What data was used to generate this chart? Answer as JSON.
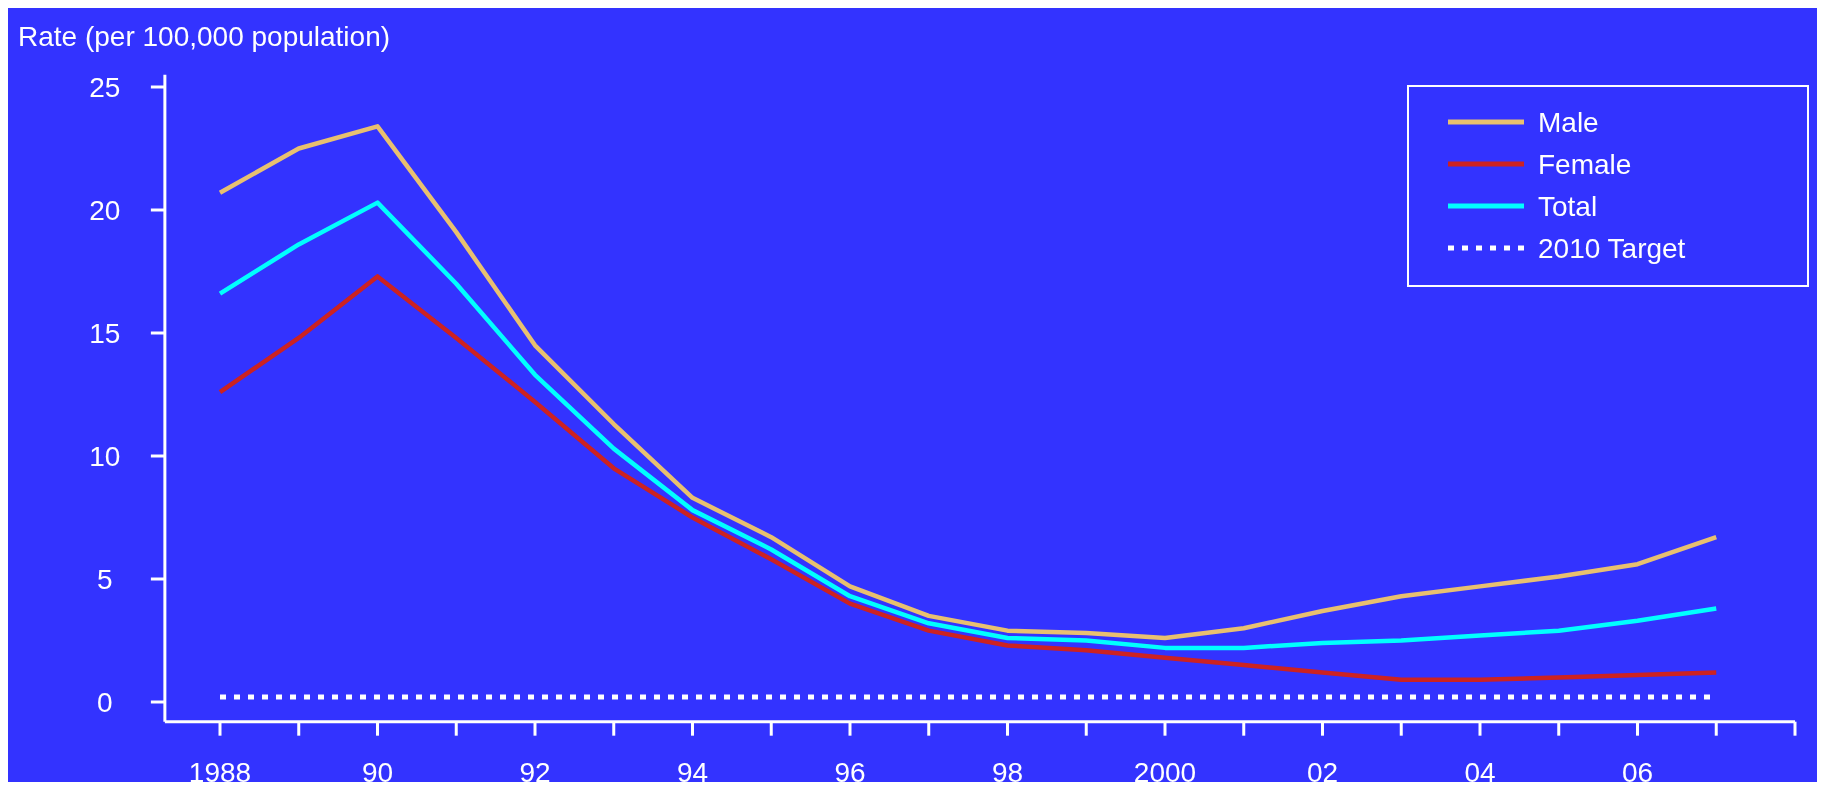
{
  "chart_data": {
    "type": "line",
    "ylabel": "Rate (per 100,000 population)",
    "x": [
      1988,
      1989,
      1990,
      1991,
      1992,
      1993,
      1994,
      1995,
      1996,
      1997,
      1998,
      1999,
      2000,
      2001,
      2002,
      2003,
      2004,
      2005,
      2006,
      2007
    ],
    "xlim": [
      1987.3,
      2008
    ],
    "ylim": [
      -0.8,
      25.5
    ],
    "xticks": [
      1988,
      {
        "value": 1989,
        "label": null
      },
      {
        "value": 1990,
        "label": "90"
      },
      {
        "value": 1991,
        "label": null
      },
      {
        "value": 1992,
        "label": "92"
      },
      {
        "value": 1993,
        "label": null
      },
      {
        "value": 1994,
        "label": "94"
      },
      {
        "value": 1995,
        "label": null
      },
      {
        "value": 1996,
        "label": "96"
      },
      {
        "value": 1997,
        "label": null
      },
      {
        "value": 1998,
        "label": "98"
      },
      {
        "value": 1999,
        "label": null
      },
      2000,
      {
        "value": 2001,
        "label": null
      },
      {
        "value": 2002,
        "label": "02"
      },
      {
        "value": 2003,
        "label": null
      },
      {
        "value": 2004,
        "label": "04"
      },
      {
        "value": 2005,
        "label": null
      },
      {
        "value": 2006,
        "label": "06"
      },
      {
        "value": 2007,
        "label": null
      },
      {
        "value": 2008,
        "label": null
      }
    ],
    "yticks": [
      0,
      5,
      10,
      15,
      20,
      25
    ],
    "series": [
      {
        "name": "Male",
        "color": "#e8c070",
        "values": [
          20.7,
          22.5,
          23.4,
          19.1,
          14.5,
          11.3,
          8.3,
          6.7,
          4.7,
          3.5,
          2.9,
          2.8,
          2.6,
          3.0,
          3.7,
          4.3,
          4.7,
          5.1,
          5.6,
          6.7
        ]
      },
      {
        "name": "Female",
        "color": "#cc2222",
        "values": [
          12.6,
          14.8,
          17.3,
          14.8,
          12.2,
          9.5,
          7.5,
          5.8,
          4.0,
          2.9,
          2.3,
          2.1,
          1.8,
          1.5,
          1.2,
          0.9,
          0.9,
          1.0,
          1.1,
          1.2
        ]
      },
      {
        "name": "Total",
        "color": "#00ffff",
        "values": [
          16.6,
          18.6,
          20.3,
          17.0,
          13.3,
          10.3,
          7.8,
          6.2,
          4.3,
          3.2,
          2.6,
          2.5,
          2.2,
          2.2,
          2.4,
          2.5,
          2.7,
          2.9,
          3.3,
          3.8
        ]
      }
    ],
    "ref_lines": [
      {
        "axis": "y",
        "value": 0.2,
        "label": "2010 Target",
        "color": "#ffffff",
        "line_style": "dotted"
      }
    ],
    "legend": "top right",
    "grid": false
  }
}
